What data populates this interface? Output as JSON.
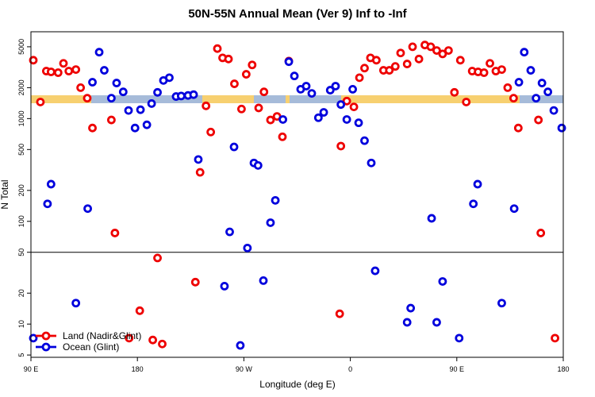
{
  "chart_data": {
    "type": "scatter",
    "title": "50N-55N Annual Mean (Ver 9)   Inf to -Inf",
    "x_label": "Longitude (deg E)",
    "y_label": "N Total",
    "log_y": true,
    "xlim": [
      90,
      540
    ],
    "ylim": [
      4.75,
      7000
    ],
    "xticks": [
      {
        "value": 90,
        "label": "90 E"
      },
      180,
      {
        "value": 270,
        "label": "90 W"
      },
      0,
      {
        "value": 450,
        "label": "90 E"
      },
      {
        "value": 540,
        "label": "180"
      }
    ],
    "yticks": [
      5,
      10,
      20,
      50,
      100,
      200,
      500,
      1000,
      2000,
      5000
    ],
    "reference_line": 50,
    "legend": "bottom-left",
    "series": [
      {
        "name": "Land (Nadir&Glint)",
        "color": "#ee0000",
        "x": [
          92,
          98,
          103,
          107,
          113,
          117.5,
          122,
          128,
          132,
          137.6,
          142,
          158,
          161,
          173,
          182,
          193,
          197,
          201,
          229,
          233,
          238,
          242,
          247.6,
          252,
          257,
          262,
          268,
          272,
          277,
          282.5,
          287,
          292.5,
          298,
          302.6,
          308,
          351,
          352,
          357,
          363,
          367.7,
          372,
          377,
          382,
          388,
          393,
          398,
          402.5,
          408,
          412.6,
          418,
          423,
          428,
          433,
          438,
          443,
          448,
          453,
          458,
          463,
          468,
          473,
          478,
          483,
          488,
          493,
          498,
          502,
          519,
          521,
          533
        ],
        "values": [
          3700,
          1450,
          2900,
          2850,
          2800,
          3450,
          2900,
          3000,
          2000,
          1580,
          810,
          970,
          77,
          7.3,
          13.5,
          7.0,
          44,
          6.4,
          25.6,
          300,
          1330,
          740,
          4800,
          3900,
          3800,
          2180,
          1240,
          2700,
          3330,
          1270,
          1820,
          970,
          1050,
          665,
          3630,
          12.6,
          540,
          1480,
          1300,
          2500,
          3100,
          3900,
          3700,
          2950,
          2950,
          3220,
          4350,
          3400,
          5000,
          3800,
          5200,
          5000,
          4600,
          4260,
          4600,
          1800,
          3700,
          1450,
          2900,
          2850,
          2800,
          3450,
          2900,
          3000,
          2000,
          1580,
          810,
          970,
          77,
          7.3
        ]
      },
      {
        "name": "Ocean (Glint)",
        "color": "#0000dd",
        "x": [
          92,
          104,
          107,
          128,
          138,
          142,
          147.7,
          152,
          158,
          162.4,
          168,
          172.5,
          178,
          182.6,
          188,
          192,
          197,
          202,
          207,
          212.7,
          217,
          222.8,
          227.5,
          231.5,
          253.6,
          258,
          261.7,
          267,
          273,
          278.5,
          282,
          286.5,
          292.5,
          296.6,
          303,
          308,
          312.7,
          318,
          322.7,
          327.4,
          333,
          337.5,
          343,
          347.5,
          352,
          357,
          362,
          367,
          372,
          377.7,
          381,
          408,
          411,
          428.7,
          433,
          438,
          452,
          464,
          467.6,
          488,
          498.5,
          502.5,
          507,
          512.5,
          517,
          522,
          527,
          532,
          538.7
        ],
        "values": [
          7.3,
          148,
          230,
          16,
          133,
          2260,
          4430,
          2950,
          1580,
          2220,
          1820,
          1200,
          810,
          1220,
          870,
          1400,
          1800,
          2350,
          2500,
          1640,
          1660,
          1680,
          1710,
          400,
          23.4,
          79,
          530,
          6.2,
          55,
          370,
          350,
          26.5,
          97,
          160,
          980,
          3580,
          2600,
          1930,
          2070,
          1760,
          1020,
          1150,
          1890,
          2070,
          1370,
          980,
          1930,
          910,
          610,
          370,
          33,
          10.4,
          14.3,
          107,
          10.4,
          26,
          7.3,
          148,
          230,
          16,
          133,
          2260,
          4430,
          2950,
          1580,
          2220,
          1820,
          1200,
          810
        ]
      }
    ]
  }
}
